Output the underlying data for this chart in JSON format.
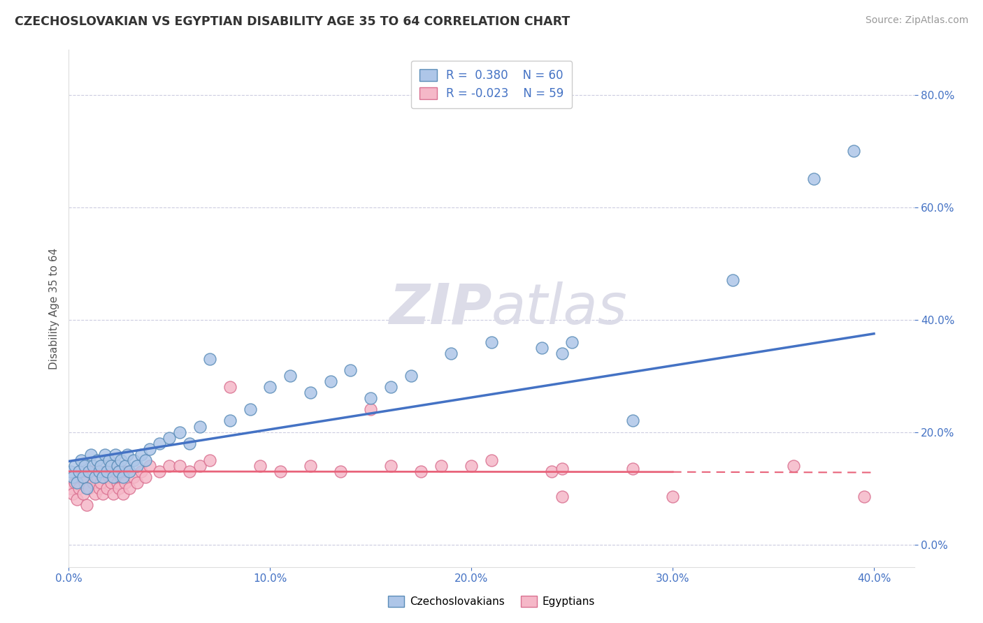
{
  "title": "CZECHOSLOVAKIAN VS EGYPTIAN DISABILITY AGE 35 TO 64 CORRELATION CHART",
  "source": "Source: ZipAtlas.com",
  "ylabel": "Disability Age 35 to 64",
  "xlim": [
    0.0,
    0.42
  ],
  "ylim": [
    -0.04,
    0.88
  ],
  "xticks": [
    0.0,
    0.1,
    0.2,
    0.3,
    0.4
  ],
  "yticks": [
    0.0,
    0.2,
    0.4,
    0.6,
    0.8
  ],
  "czech_R": 0.38,
  "czech_N": 60,
  "egypt_R": -0.023,
  "egypt_N": 59,
  "czech_color": "#AEC6E8",
  "czech_edge_color": "#5B8DB8",
  "czech_line_color": "#4472C4",
  "egypt_color": "#F5B8C8",
  "egypt_edge_color": "#D97090",
  "egypt_line_color": "#E8637A",
  "grid_color": "#AAAACC",
  "watermark_color": "#DCDCE8",
  "legend_R_color": "#4472C4",
  "legend_label_czech": "Czechoslovakians",
  "legend_label_egypt": "Egyptians",
  "czech_x": [
    0.001,
    0.002,
    0.003,
    0.004,
    0.005,
    0.006,
    0.007,
    0.008,
    0.009,
    0.01,
    0.011,
    0.012,
    0.013,
    0.014,
    0.015,
    0.016,
    0.017,
    0.018,
    0.019,
    0.02,
    0.021,
    0.022,
    0.023,
    0.024,
    0.025,
    0.026,
    0.027,
    0.028,
    0.029,
    0.03,
    0.032,
    0.034,
    0.036,
    0.038,
    0.04,
    0.045,
    0.05,
    0.055,
    0.06,
    0.065,
    0.07,
    0.08,
    0.09,
    0.1,
    0.11,
    0.12,
    0.13,
    0.14,
    0.15,
    0.16,
    0.17,
    0.19,
    0.21,
    0.235,
    0.245,
    0.25,
    0.28,
    0.33,
    0.37,
    0.39
  ],
  "czech_y": [
    0.13,
    0.12,
    0.14,
    0.11,
    0.13,
    0.15,
    0.12,
    0.14,
    0.1,
    0.13,
    0.16,
    0.14,
    0.12,
    0.15,
    0.13,
    0.14,
    0.12,
    0.16,
    0.13,
    0.15,
    0.14,
    0.12,
    0.16,
    0.14,
    0.13,
    0.15,
    0.12,
    0.14,
    0.16,
    0.13,
    0.15,
    0.14,
    0.16,
    0.15,
    0.17,
    0.18,
    0.19,
    0.2,
    0.18,
    0.21,
    0.33,
    0.22,
    0.24,
    0.28,
    0.3,
    0.27,
    0.29,
    0.31,
    0.26,
    0.28,
    0.3,
    0.34,
    0.36,
    0.35,
    0.34,
    0.36,
    0.22,
    0.47,
    0.65,
    0.7
  ],
  "egypt_x": [
    0.001,
    0.002,
    0.003,
    0.004,
    0.005,
    0.006,
    0.007,
    0.008,
    0.009,
    0.01,
    0.011,
    0.012,
    0.013,
    0.014,
    0.015,
    0.016,
    0.017,
    0.018,
    0.019,
    0.02,
    0.021,
    0.022,
    0.023,
    0.024,
    0.025,
    0.026,
    0.027,
    0.028,
    0.029,
    0.03,
    0.032,
    0.034,
    0.036,
    0.038,
    0.04,
    0.045,
    0.05,
    0.055,
    0.06,
    0.065,
    0.07,
    0.08,
    0.095,
    0.105,
    0.12,
    0.135,
    0.15,
    0.16,
    0.175,
    0.185,
    0.2,
    0.21,
    0.24,
    0.245,
    0.245,
    0.28,
    0.3,
    0.36,
    0.395
  ],
  "egypt_y": [
    0.1,
    0.09,
    0.11,
    0.08,
    0.1,
    0.12,
    0.09,
    0.11,
    0.07,
    0.1,
    0.13,
    0.11,
    0.09,
    0.12,
    0.1,
    0.11,
    0.09,
    0.13,
    0.1,
    0.12,
    0.11,
    0.09,
    0.13,
    0.11,
    0.1,
    0.12,
    0.09,
    0.11,
    0.13,
    0.1,
    0.12,
    0.11,
    0.13,
    0.12,
    0.14,
    0.13,
    0.14,
    0.14,
    0.13,
    0.14,
    0.15,
    0.28,
    0.14,
    0.13,
    0.14,
    0.13,
    0.24,
    0.14,
    0.13,
    0.14,
    0.14,
    0.15,
    0.13,
    0.085,
    0.135,
    0.135,
    0.085,
    0.14,
    0.085
  ],
  "czech_trendline_x": [
    0.0,
    0.4
  ],
  "czech_trendline_y": [
    0.148,
    0.375
  ],
  "egypt_trendline_x": [
    0.0,
    0.4
  ],
  "egypt_trendline_y": [
    0.13,
    0.128
  ]
}
